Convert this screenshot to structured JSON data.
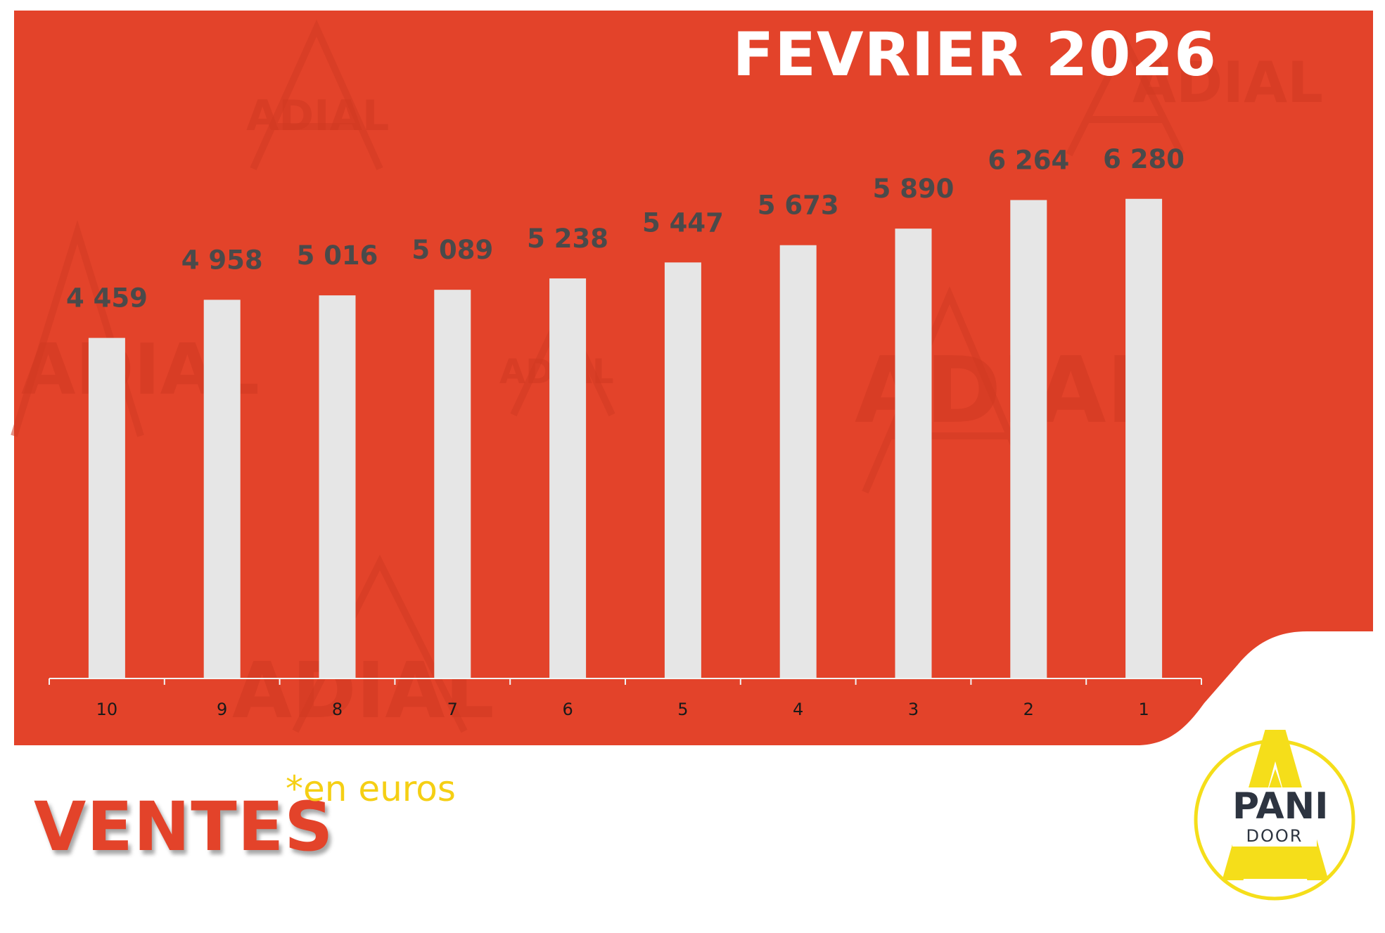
{
  "title": "FEVRIER 2026",
  "footer": {
    "label": "VENTES",
    "unit_note": "*en euros"
  },
  "logo": {
    "line1": "PANI",
    "line2": "DOOR"
  },
  "watermark": {
    "text": "ADIAL"
  },
  "colors": {
    "background": "#e3432a",
    "bars": "#e6e6e6",
    "value_labels": "#4a4a4a",
    "accent": "#f5cf14",
    "logo_text": "#2d3440"
  },
  "chart_data": {
    "type": "bar",
    "title": "FEVRIER 2026",
    "categories": [
      "10",
      "9",
      "8",
      "7",
      "6",
      "5",
      "4",
      "3",
      "2",
      "1"
    ],
    "values": [
      4459,
      4958,
      5016,
      5089,
      5238,
      5447,
      5673,
      5890,
      6264,
      6280
    ],
    "value_labels": [
      "4 459",
      "4 958",
      "5 016",
      "5 089",
      "5 238",
      "5 447",
      "5 673",
      "5 890",
      "6 264",
      "6 280"
    ],
    "xlabel": "",
    "ylabel": "",
    "ylim": [
      0,
      6950
    ],
    "grid": false,
    "legend": "none"
  }
}
